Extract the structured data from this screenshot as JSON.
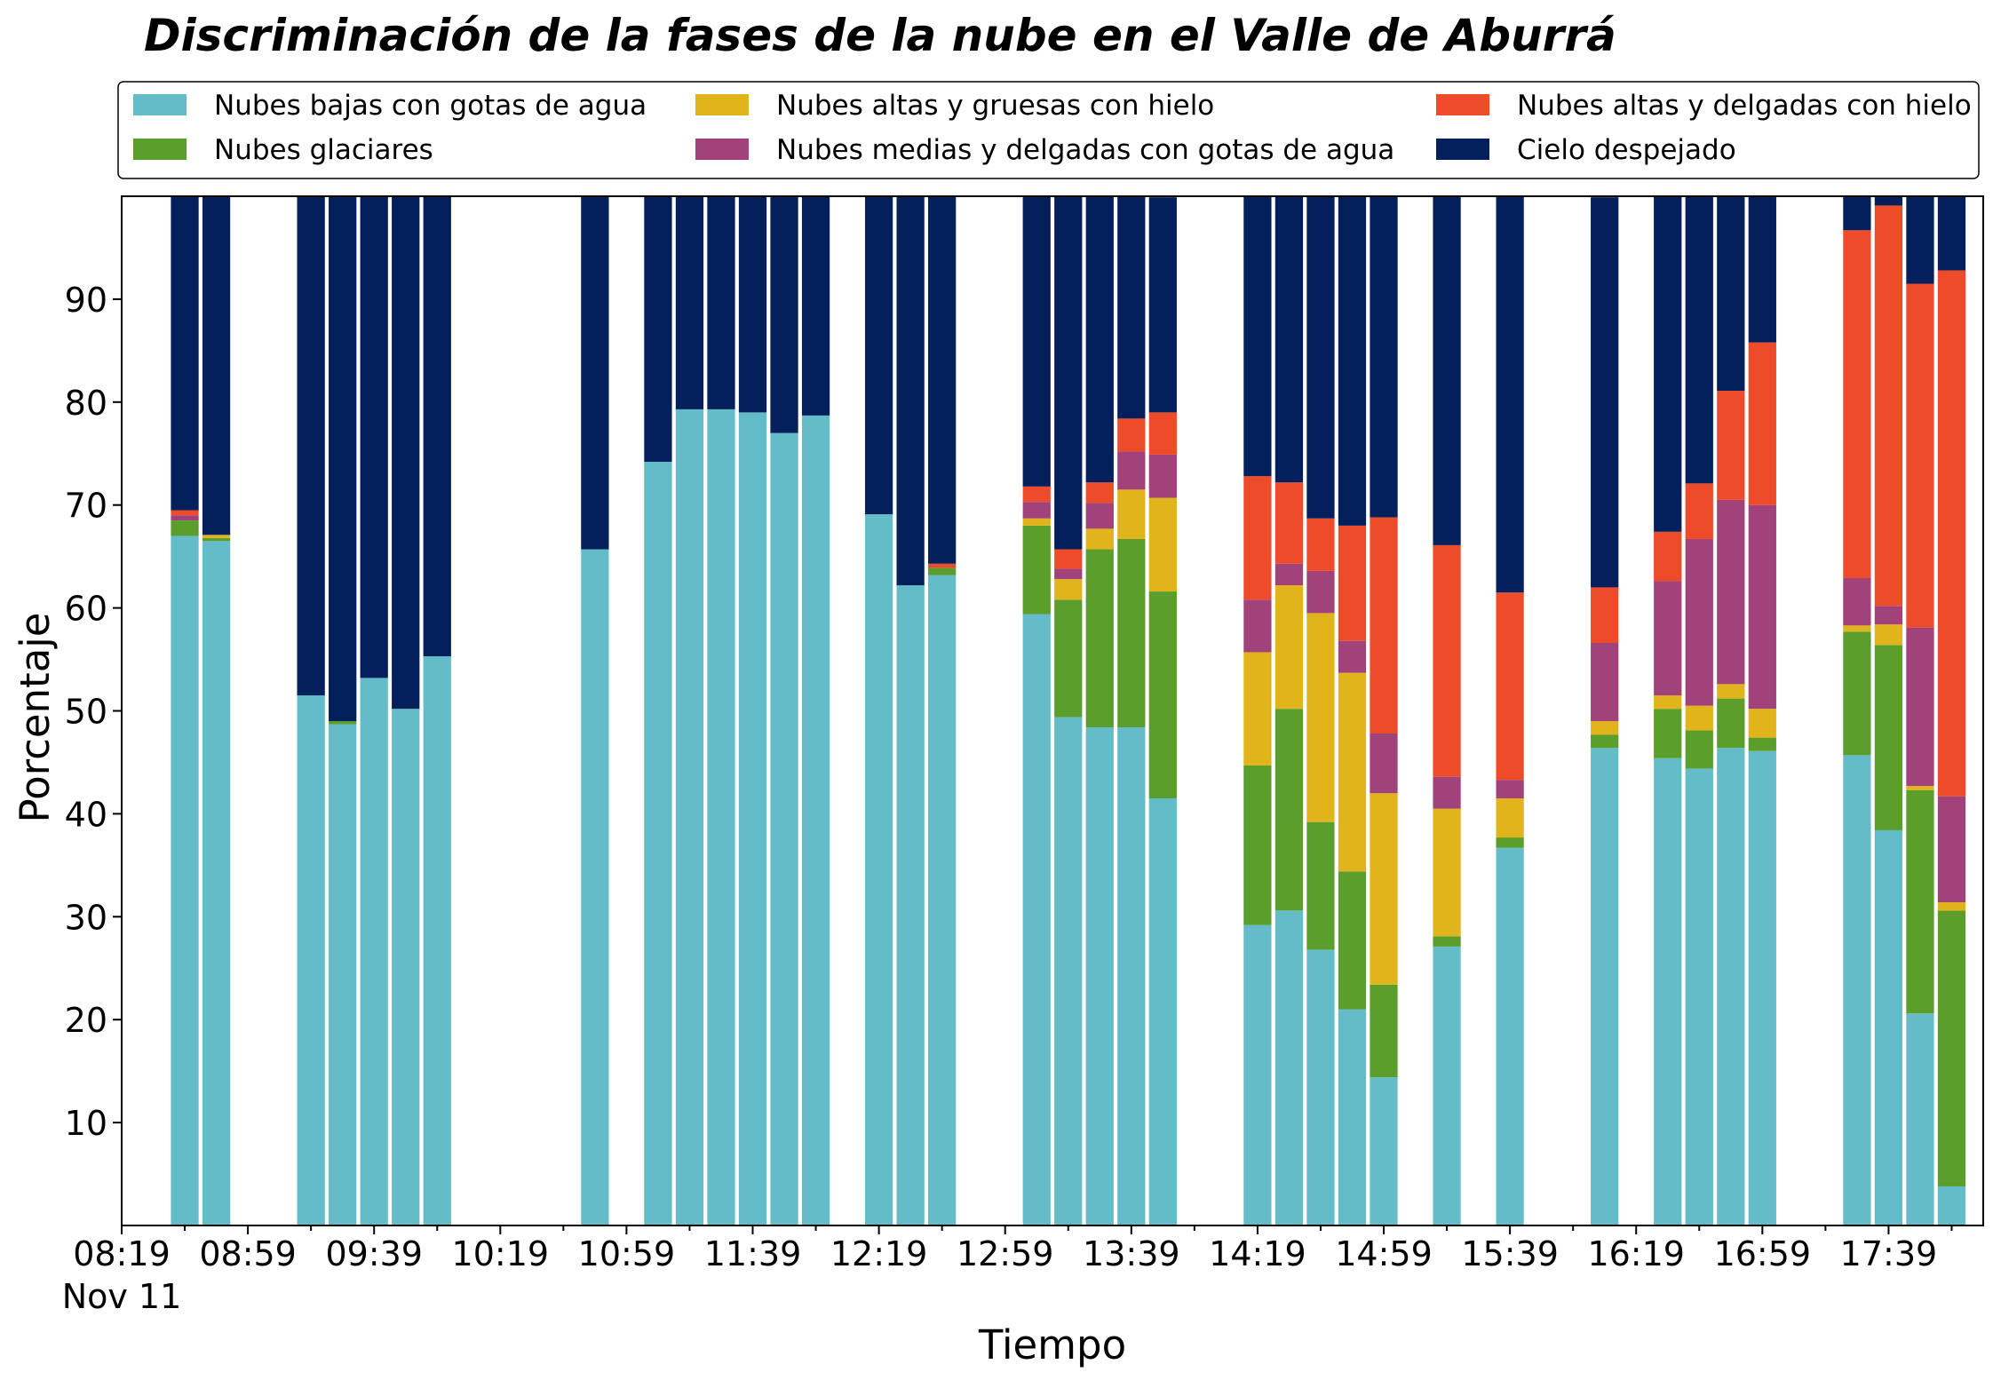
{
  "chart_data": {
    "type": "bar",
    "stacked": true,
    "title": "Discriminación de la fases de la nube en el Valle de Aburrá",
    "xlabel": "Tiempo",
    "ylabel": "Porcentaje",
    "ylim": [
      0,
      100
    ],
    "yticks": [
      10,
      20,
      30,
      40,
      50,
      60,
      70,
      80,
      90
    ],
    "x_ticks": [
      "08:19",
      "08:59",
      "09:39",
      "10:19",
      "10:59",
      "11:39",
      "12:19",
      "12:59",
      "13:39",
      "14:19",
      "14:59",
      "15:39",
      "16:19",
      "16:59",
      "17:39"
    ],
    "x_tick_sublabel": "Nov 11",
    "x_range": [
      "08:19",
      "18:09"
    ],
    "legend_position": "top",
    "grid": false,
    "x": [
      "08:39",
      "08:49",
      "09:19",
      "09:29",
      "09:39",
      "09:49",
      "09:59",
      "10:49",
      "11:09",
      "11:19",
      "11:29",
      "11:39",
      "11:49",
      "11:59",
      "12:19",
      "12:29",
      "12:39",
      "13:09",
      "13:19",
      "13:29",
      "13:39",
      "13:49",
      "14:19",
      "14:29",
      "14:39",
      "14:49",
      "14:59",
      "15:19",
      "15:39",
      "16:09",
      "16:29",
      "16:39",
      "16:49",
      "16:59",
      "17:29",
      "17:39",
      "17:49",
      "17:59"
    ],
    "series": [
      {
        "name": "Nubes bajas con gotas de agua",
        "color": "#65BCC9",
        "values": [
          67,
          66.5,
          51.5,
          48.7,
          53.2,
          50.2,
          55.3,
          65.7,
          74.2,
          79.3,
          79.3,
          79,
          77,
          78.7,
          69.1,
          62.2,
          63.2,
          59.4,
          49.4,
          48.4,
          48.4,
          41.5,
          29.2,
          30.6,
          26.8,
          21,
          14.4,
          27.1,
          36.7,
          46.4,
          45.4,
          44.4,
          46.4,
          46.1,
          45.7,
          38.4,
          20.6,
          3.8
        ]
      },
      {
        "name": "Nubes glaciares",
        "color": "#5B9E2B",
        "values": [
          1.5,
          0.3,
          0,
          0.3,
          0,
          0,
          0,
          0,
          0,
          0,
          0,
          0,
          0,
          0,
          0,
          0,
          0.7,
          8.6,
          11.4,
          17.3,
          18.3,
          20.1,
          15.5,
          19.6,
          12.4,
          13.4,
          9,
          1,
          1,
          1.3,
          4.8,
          3.7,
          4.8,
          1.3,
          12,
          18,
          21.7,
          26.8
        ]
      },
      {
        "name": "Nubes altas y gruesas con hielo",
        "color": "#E2B41B",
        "values": [
          0,
          0.3,
          0,
          0,
          0,
          0,
          0,
          0,
          0,
          0,
          0,
          0,
          0,
          0,
          0,
          0,
          0,
          0.7,
          2,
          2,
          4.8,
          9.1,
          11,
          12,
          20.3,
          19.3,
          18.6,
          12.4,
          3.8,
          1.3,
          1.3,
          2.4,
          1.4,
          2.8,
          0.6,
          2,
          0.4,
          0.8
        ]
      },
      {
        "name": "Nubes medias y delgadas con gotas de agua",
        "color": "#A1427A",
        "values": [
          0.5,
          0,
          0,
          0,
          0,
          0,
          0,
          0,
          0,
          0,
          0,
          0,
          0,
          0,
          0,
          0,
          0,
          1.6,
          1,
          2.5,
          3.7,
          4.2,
          5.1,
          2.1,
          4.1,
          3.1,
          5.8,
          3.1,
          1.8,
          7.6,
          11.1,
          16.2,
          17.9,
          19.8,
          4.6,
          1.8,
          15.4,
          10.3
        ]
      },
      {
        "name": "Nubes altas y delgadas con hielo",
        "color": "#EE4B2B",
        "values": [
          0.5,
          0,
          0,
          0,
          0,
          0,
          0,
          0,
          0,
          0,
          0,
          0,
          0,
          0,
          0,
          0,
          0.4,
          1.5,
          1.9,
          2,
          3.2,
          4.1,
          12,
          7.9,
          5.1,
          11.2,
          21,
          22.5,
          18.2,
          5.4,
          4.8,
          5.4,
          10.6,
          15.8,
          33.8,
          38.9,
          33.4,
          51.1
        ]
      },
      {
        "name": "Cielo despejado",
        "color": "#03205C",
        "values": [
          30.5,
          32.9,
          48.5,
          51,
          46.8,
          49.8,
          44.7,
          34.3,
          25.8,
          20.7,
          20.7,
          21,
          23,
          21.3,
          30.9,
          37.8,
          35.7,
          28.2,
          34.3,
          27.8,
          21.6,
          20.9,
          27.2,
          27.8,
          31.3,
          32,
          31.2,
          33.9,
          38.5,
          37.9,
          32.6,
          27.9,
          18.9,
          14.2,
          3.3,
          0.9,
          8.5,
          7.2
        ]
      }
    ]
  }
}
